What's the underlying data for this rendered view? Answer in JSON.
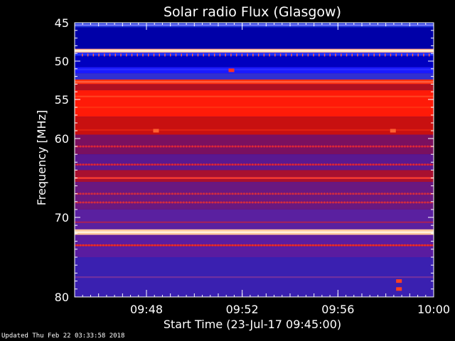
{
  "chart_data": {
    "type": "heatmap",
    "title": "Solar radio Flux (Glasgow)",
    "xlabel": "Start Time (23-Jul-17 09:45:00)",
    "ylabel": "Frequency [MHz]",
    "x_range_minutes": [
      "09:45",
      "10:00"
    ],
    "x_ticks": [
      "09:48",
      "09:52",
      "09:56",
      "10:00"
    ],
    "x_tick_minutes": [
      3,
      7,
      11,
      15
    ],
    "y_range_mhz": [
      45,
      80
    ],
    "y_ticks": [
      45,
      50,
      55,
      60,
      70,
      80
    ],
    "y_scale": "nonlinear",
    "colormap": [
      "#0000a0",
      "#1a1aff",
      "#6020a0",
      "#c00000",
      "#ff2000",
      "#ff9060",
      "#fff0d0"
    ],
    "bands": [
      {
        "f0": 45.0,
        "f1": 45.6,
        "color": "#1830d0"
      },
      {
        "f0": 45.6,
        "f1": 48.4,
        "color": "#0000a8"
      },
      {
        "f0": 48.4,
        "f1": 48.9,
        "color": "#ffb090"
      },
      {
        "f0": 48.9,
        "f1": 49.3,
        "color": "#2030ff"
      },
      {
        "f0": 49.3,
        "f1": 50.8,
        "color": "#0000c0"
      },
      {
        "f0": 50.8,
        "f1": 51.6,
        "color": "#1a1aff"
      },
      {
        "f0": 51.6,
        "f1": 52.4,
        "color": "#3030d0"
      },
      {
        "f0": 52.4,
        "f1": 53.0,
        "color": "#ff3010"
      },
      {
        "f0": 53.0,
        "f1": 53.8,
        "color": "#b01020"
      },
      {
        "f0": 53.8,
        "f1": 57.2,
        "color": "#ff1a08"
      },
      {
        "f0": 57.2,
        "f1": 59.5,
        "color": "#c81010"
      },
      {
        "f0": 59.5,
        "f1": 62.0,
        "color": "#7a1060"
      },
      {
        "f0": 62.0,
        "f1": 64.0,
        "color": "#5a1890"
      },
      {
        "f0": 64.0,
        "f1": 65.5,
        "color": "#a81030"
      },
      {
        "f0": 65.5,
        "f1": 69.0,
        "color": "#6a1880"
      },
      {
        "f0": 69.0,
        "f1": 71.5,
        "color": "#5a20a0"
      },
      {
        "f0": 71.5,
        "f1": 72.2,
        "color": "#ffc8a0"
      },
      {
        "f0": 72.2,
        "f1": 75.0,
        "color": "#5a1ca0"
      },
      {
        "f0": 75.0,
        "f1": 80.0,
        "color": "#3a20b0"
      }
    ],
    "lines": [
      {
        "f": 45.3,
        "color": "#8080ff"
      },
      {
        "f": 48.65,
        "color": "#fff8e8"
      },
      {
        "f": 51.1,
        "color": "#2a2aff"
      },
      {
        "f": 52.7,
        "color": "#ff6040"
      },
      {
        "f": 54.6,
        "color": "#ff4020"
      },
      {
        "f": 56.0,
        "color": "#ff3010"
      },
      {
        "f": 58.9,
        "color": "#e02010"
      },
      {
        "f": 61.0,
        "color": "#c01840"
      },
      {
        "f": 63.3,
        "color": "#c01840"
      },
      {
        "f": 65.0,
        "color": "#ff4030"
      },
      {
        "f": 67.0,
        "color": "#b02050"
      },
      {
        "f": 68.1,
        "color": "#b02050"
      },
      {
        "f": 70.6,
        "color": "#a02060"
      },
      {
        "f": 71.85,
        "color": "#fff4e0"
      },
      {
        "f": 73.5,
        "color": "#e02020"
      },
      {
        "f": 77.5,
        "color": "#7030a0"
      }
    ],
    "spots": [
      {
        "t": 3.4,
        "f": 59.0,
        "color": "#ff6030"
      },
      {
        "t": 13.3,
        "f": 59.0,
        "color": "#ff6030"
      },
      {
        "t": 6.55,
        "f": 51.2,
        "color": "#ff3020"
      },
      {
        "t": 13.55,
        "f": 78.0,
        "color": "#ff4020"
      },
      {
        "t": 13.55,
        "f": 79.0,
        "color": "#ff4020"
      }
    ]
  },
  "footer": {
    "updated": "Updated Thu Feb 22 03:33:58 2018"
  },
  "colors": {
    "background": "#000000",
    "axis": "#ffffff"
  }
}
